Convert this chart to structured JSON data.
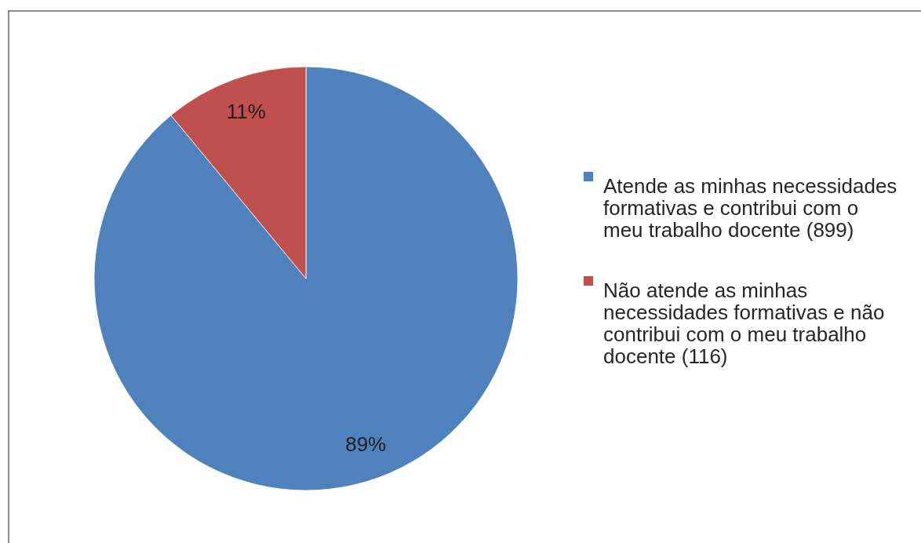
{
  "chart_data": {
    "type": "pie",
    "categories": [
      "Atende as minhas necessidades formativas e contribui com o meu trabalho docente (899)",
      "Não atende as minhas necessidades formativas e não contribui com o meu trabalho docente (116)"
    ],
    "values": [
      89,
      11
    ],
    "colors": [
      "#4f81bd",
      "#c0504d"
    ],
    "value_labels": [
      "89%",
      "11%"
    ],
    "legend": "right"
  }
}
